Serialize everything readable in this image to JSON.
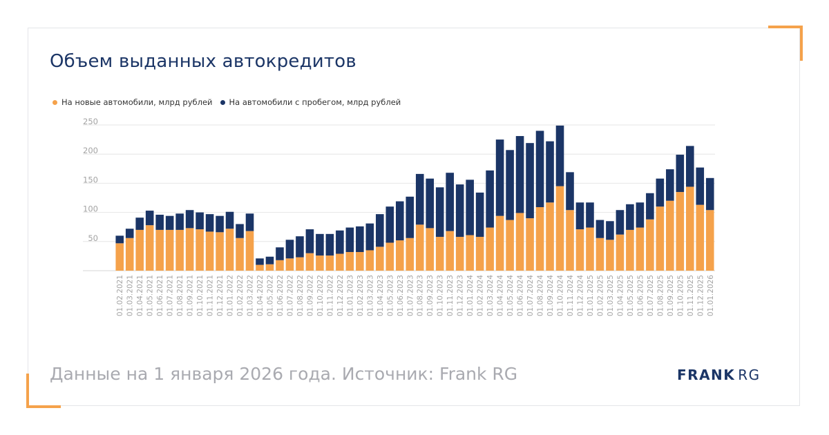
{
  "title": "Объем выданных автокредитов",
  "footer": "Данные на 1 января 2026 года. Источник: Frank RG",
  "logo": {
    "word1": "FRANK",
    "word2": "RG"
  },
  "colors": {
    "new": "#f5a24b",
    "used": "#1b3566",
    "accent": "#f5a24b",
    "grid": "#e6e6e6",
    "tick": "#a3a3a3"
  },
  "chart_data": {
    "type": "bar",
    "stacked": true,
    "title": "Объем выданных автокредитов",
    "xlabel": "",
    "ylabel": "",
    "ylim": [
      0,
      250
    ],
    "yticks": [
      50,
      100,
      150,
      200,
      250
    ],
    "grid": true,
    "legend_position": "top-left",
    "categories": [
      "01.02.2021",
      "01.03.2021",
      "01.04.2021",
      "01.05.2021",
      "01.06.2021",
      "01.07.2021",
      "01.08.2021",
      "01.09.2021",
      "01.10.2021",
      "01.11.2021",
      "01.12.2021",
      "01.01.2022",
      "01.02.2022",
      "01.03.2022",
      "01.04.2022",
      "01.05.2022",
      "01.06.2022",
      "01.07.2022",
      "01.08.2022",
      "01.09.2022",
      "01.10.2022",
      "01.11.2022",
      "01.12.2022",
      "01.01.2023",
      "01.02.2023",
      "01.03.2023",
      "01.04.2023",
      "01.05.2023",
      "01.06.2023",
      "01.07.2023",
      "01.08.2023",
      "01.09.2023",
      "01.10.2023",
      "01.11.2023",
      "01.12.2023",
      "01.01.2024",
      "01.02.2024",
      "01.03.2024",
      "01.04.2024",
      "01.05.2024",
      "01.06.2024",
      "01.07.2024",
      "01.08.2024",
      "01.09.2024",
      "01.10.2024",
      "01.11.2024",
      "01.12.2024",
      "01.01.2025",
      "01.02.2025",
      "01.03.2025",
      "01.04.2025",
      "01.05.2025",
      "01.06.2025",
      "01.07.2025",
      "01.08.2025",
      "01.09.2025",
      "01.10.2025",
      "01.11.2025",
      "01.12.2025",
      "01.01.2026"
    ],
    "series": [
      {
        "name": "На новые автомобили, млрд рублей",
        "color": "#f5a24b",
        "values": [
          47,
          56,
          70,
          78,
          70,
          70,
          70,
          73,
          71,
          67,
          66,
          72,
          56,
          68,
          10,
          11,
          18,
          21,
          23,
          30,
          26,
          26,
          29,
          32,
          32,
          35,
          41,
          48,
          52,
          56,
          79,
          73,
          58,
          68,
          58,
          61,
          58,
          74,
          94,
          87,
          99,
          90,
          109,
          117,
          145,
          104,
          71,
          74,
          56,
          53,
          62,
          70,
          74,
          88,
          110,
          120,
          135,
          144,
          113,
          104
        ]
      },
      {
        "name": "На автомобили с пробегом, млрд рублей",
        "color": "#1b3566",
        "values": [
          13,
          16,
          21,
          25,
          26,
          24,
          28,
          31,
          29,
          30,
          28,
          29,
          24,
          30,
          11,
          13,
          22,
          32,
          36,
          41,
          37,
          37,
          40,
          42,
          44,
          46,
          56,
          62,
          67,
          71,
          87,
          85,
          85,
          100,
          90,
          95,
          76,
          98,
          131,
          120,
          132,
          129,
          131,
          105,
          104,
          65,
          46,
          43,
          31,
          32,
          42,
          44,
          43,
          45,
          48,
          54,
          64,
          70,
          64,
          55
        ]
      }
    ]
  }
}
